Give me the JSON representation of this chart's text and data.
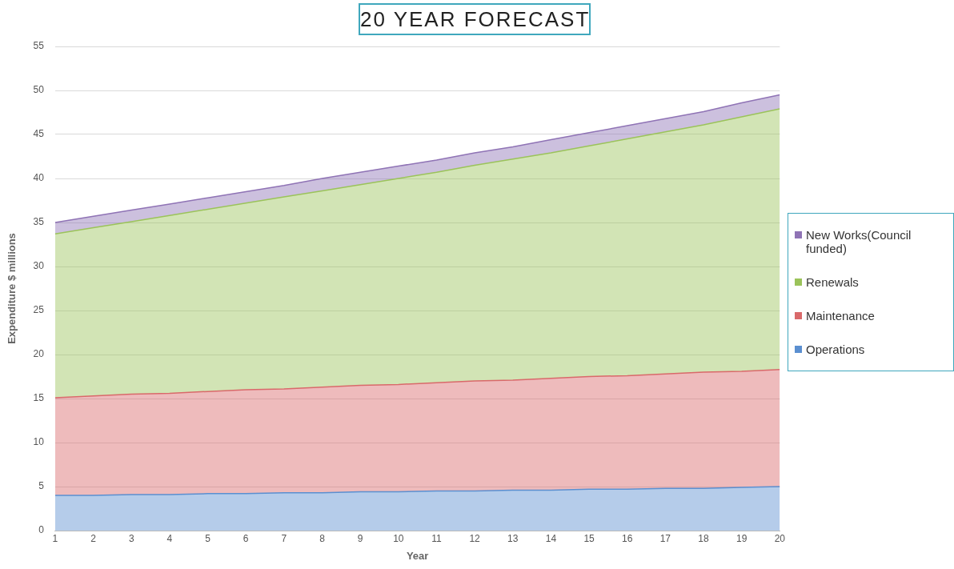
{
  "chart_data": {
    "type": "area",
    "title": "20 YEAR FORECAST",
    "xlabel": "Year",
    "ylabel": "Expenditure $ millions",
    "x": [
      1,
      2,
      3,
      4,
      5,
      6,
      7,
      8,
      9,
      10,
      11,
      12,
      13,
      14,
      15,
      16,
      17,
      18,
      19,
      20
    ],
    "xlim": [
      1,
      20
    ],
    "xticks": [
      1,
      2,
      3,
      4,
      5,
      6,
      7,
      8,
      9,
      10,
      11,
      12,
      13,
      14,
      15,
      16,
      17,
      18,
      19,
      20
    ],
    "ylim": [
      0,
      55
    ],
    "yticks": [
      0,
      5,
      10,
      15,
      20,
      25,
      30,
      35,
      40,
      45,
      50,
      55
    ],
    "stacked": true,
    "grid": "y",
    "legend": "right",
    "series": [
      {
        "name": "Operations",
        "color": "#5b8fd0",
        "values": [
          4.0,
          4.0,
          4.1,
          4.1,
          4.2,
          4.2,
          4.3,
          4.3,
          4.4,
          4.4,
          4.5,
          4.5,
          4.6,
          4.6,
          4.7,
          4.7,
          4.8,
          4.8,
          4.9,
          5.0
        ]
      },
      {
        "name": "Maintenance",
        "color": "#d9696a",
        "values": [
          11.1,
          11.3,
          11.4,
          11.5,
          11.6,
          11.8,
          11.8,
          12.0,
          12.1,
          12.2,
          12.3,
          12.5,
          12.5,
          12.7,
          12.8,
          12.9,
          13.0,
          13.2,
          13.2,
          13.3
        ]
      },
      {
        "name": "Renewals",
        "color": "#9bc35a",
        "values": [
          18.6,
          19.1,
          19.6,
          20.2,
          20.7,
          21.2,
          21.8,
          22.3,
          22.8,
          23.4,
          23.9,
          24.5,
          25.1,
          25.6,
          26.2,
          26.9,
          27.5,
          28.1,
          28.9,
          29.6
        ]
      },
      {
        "name": "New Works(Council funded)",
        "color": "#8f73b5",
        "values": [
          1.3,
          1.3,
          1.3,
          1.3,
          1.3,
          1.3,
          1.3,
          1.4,
          1.4,
          1.4,
          1.4,
          1.4,
          1.4,
          1.5,
          1.5,
          1.5,
          1.5,
          1.5,
          1.6,
          1.6
        ]
      }
    ]
  }
}
